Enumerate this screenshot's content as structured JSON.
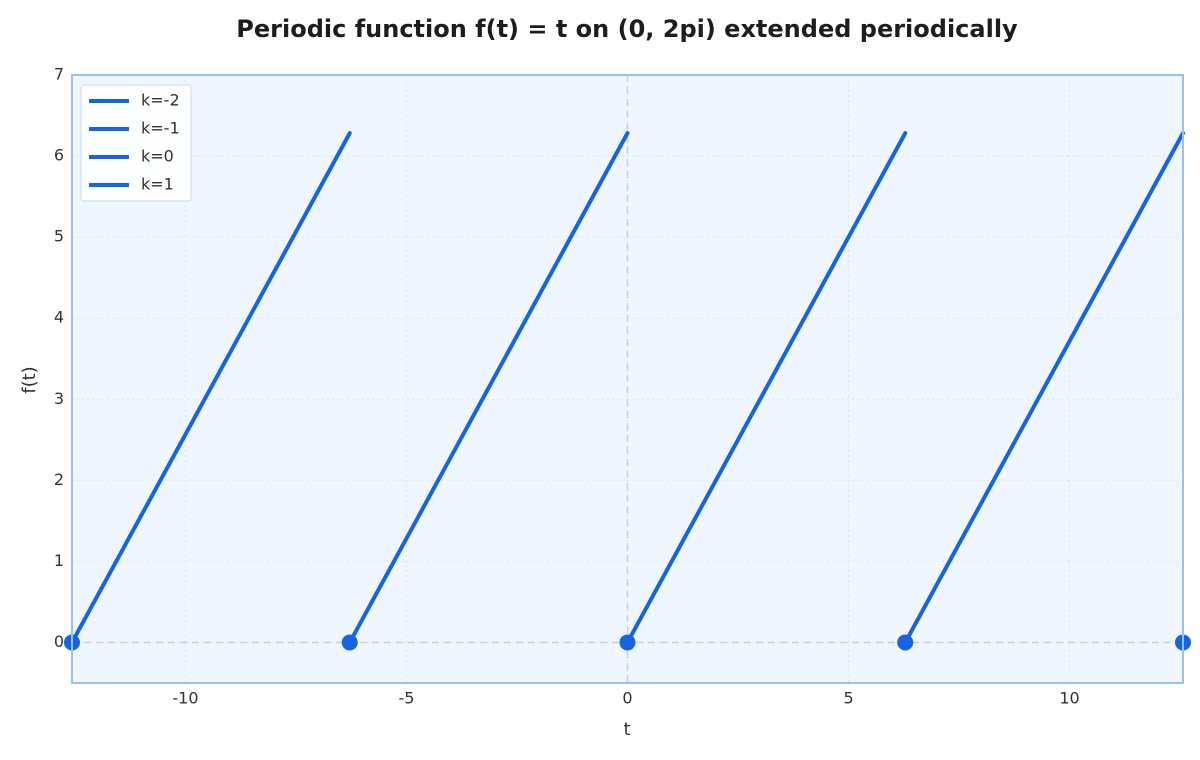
{
  "chart_data": {
    "type": "line",
    "title": "Periodic function f(t) = t on (0, 2pi) extended periodically",
    "xlabel": "t",
    "ylabel": "f(t)",
    "xlim": [
      -12.566,
      12.566
    ],
    "ylim": [
      -0.5,
      7
    ],
    "xticks": [
      -10,
      -5,
      0,
      5,
      10
    ],
    "yticks": [
      0,
      1,
      2,
      3,
      4,
      5,
      6,
      7
    ],
    "grid": true,
    "legend": "upper left",
    "series": [
      {
        "name": "k=-2",
        "color": "#1764e0",
        "x": [
          -12.566,
          -6.283
        ],
        "values": [
          0,
          6.283
        ]
      },
      {
        "name": "k=-1",
        "color": "#1764e0",
        "x": [
          -6.283,
          0
        ],
        "values": [
          0,
          6.283
        ]
      },
      {
        "name": "k=0",
        "color": "#1764e0",
        "x": [
          0,
          6.283
        ],
        "values": [
          0,
          6.283
        ]
      },
      {
        "name": "k=1",
        "color": "#1764e0",
        "x": [
          6.283,
          12.566
        ],
        "values": [
          0,
          6.283
        ]
      }
    ],
    "points": {
      "color": "#1764e0",
      "x": [
        -12.566,
        -6.283,
        0,
        6.283,
        12.566
      ],
      "values": [
        0,
        0,
        0,
        0,
        0
      ]
    },
    "reference_lines": {
      "x": [
        0
      ],
      "y": [
        0
      ]
    }
  }
}
